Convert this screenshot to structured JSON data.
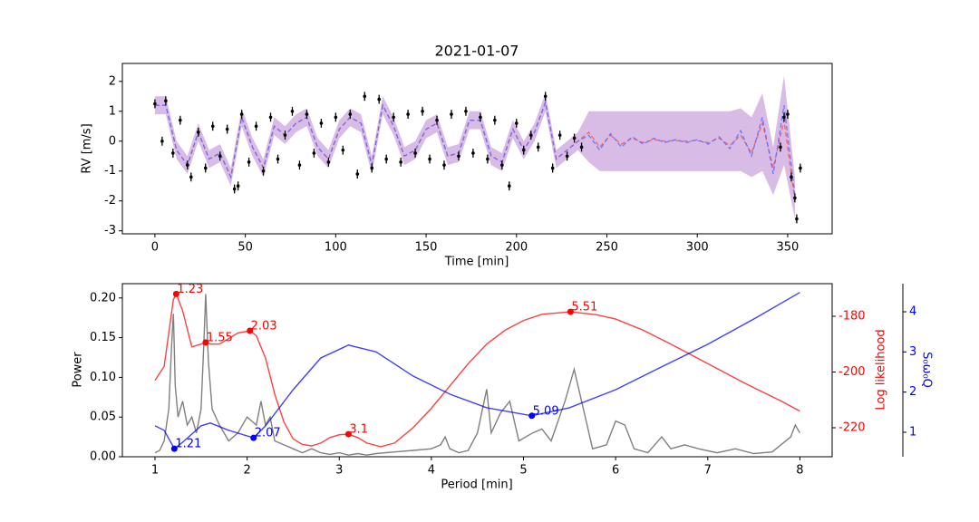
{
  "chart_data": [
    {
      "type": "scatter",
      "title": "2021-01-07",
      "x_label": "Time [min]",
      "y_label": "RV [m/s]",
      "xlim": [
        -18,
        374.6
      ],
      "ylim": [
        -3.1,
        2.6
      ],
      "xticks": [
        0,
        50,
        100,
        150,
        200,
        250,
        300,
        350
      ],
      "yticks": [
        -3,
        -2,
        -1,
        0,
        1,
        2
      ],
      "series": [
        {
          "color": "#000000",
          "error": 0.15,
          "x": [
            0,
            4,
            6,
            10,
            14,
            18,
            20,
            24,
            28,
            32,
            36,
            40,
            44,
            46,
            48,
            52,
            56,
            60,
            64,
            68,
            72,
            76,
            80,
            84,
            88,
            92,
            96,
            100,
            104,
            108,
            112,
            116,
            120,
            124,
            128,
            132,
            136,
            140,
            144,
            148,
            152,
            156,
            160,
            164,
            168,
            172,
            176,
            180,
            184,
            188,
            192,
            196,
            200,
            204,
            208,
            212,
            216,
            220,
            224,
            228,
            232,
            236,
            346,
            348,
            350,
            352,
            354,
            355,
            357
          ],
          "values": [
            1.25,
            0.0,
            1.35,
            -0.4,
            0.7,
            -0.8,
            -1.2,
            0.3,
            -0.9,
            0.5,
            -0.5,
            0.4,
            -1.6,
            -1.5,
            0.9,
            -0.7,
            0.5,
            -1.0,
            0.8,
            -0.6,
            0.2,
            1.0,
            -0.8,
            0.9,
            -0.4,
            0.6,
            -0.7,
            0.8,
            -0.3,
            0.9,
            -1.1,
            1.5,
            -0.9,
            1.4,
            -0.6,
            0.8,
            -0.7,
            0.9,
            -0.4,
            1.0,
            -0.6,
            0.7,
            -0.8,
            0.9,
            -0.5,
            1.0,
            -0.4,
            0.8,
            -0.6,
            0.7,
            -0.8,
            -1.5,
            0.6,
            -0.3,
            0.2,
            -0.2,
            1.5,
            -0.9,
            0.2,
            -0.5,
            0.1,
            -0.2,
            -0.2,
            0.8,
            0.9,
            -1.2,
            -1.9,
            -2.6,
            -0.9
          ]
        }
      ],
      "model": {
        "band_color": "#c9a0dc",
        "x": [
          0,
          6,
          12,
          18,
          24,
          30,
          36,
          42,
          48,
          54,
          60,
          66,
          72,
          78,
          84,
          90,
          96,
          102,
          108,
          114,
          120,
          126,
          132,
          138,
          144,
          150,
          156,
          162,
          168,
          174,
          180,
          186,
          192,
          198,
          204,
          210,
          216,
          222,
          228,
          234,
          240,
          246,
          252,
          258,
          264,
          270,
          276,
          282,
          288,
          294,
          300,
          306,
          312,
          318,
          324,
          330,
          336,
          342,
          348,
          354
        ],
        "lower": [
          0.9,
          0.9,
          -0.6,
          -1.1,
          0,
          -0.9,
          -0.7,
          -1.5,
          0.5,
          -0.5,
          -1.2,
          0.2,
          -0.1,
          0.3,
          0.5,
          -0.5,
          -0.9,
          0.1,
          0.5,
          0.3,
          -1.1,
          0.9,
          0.2,
          -0.8,
          -0.6,
          0.1,
          0.3,
          -0.8,
          -0.7,
          0.4,
          0.4,
          -0.8,
          -1.0,
          0.1,
          -0.6,
          0,
          1.0,
          -0.9,
          -0.6,
          -0.3,
          -0.7,
          -1.0,
          -1.0,
          -1.0,
          -1.0,
          -1.0,
          -1.0,
          -1.0,
          -1.0,
          -1.0,
          -1.0,
          -1.0,
          -1.0,
          -1.0,
          -1.0,
          -1.2,
          -1.0,
          -1.8,
          -0.8,
          -2.6
        ],
        "upper": [
          1.5,
          1.5,
          0,
          -0.5,
          0.6,
          -0.3,
          -0.1,
          -0.9,
          1.1,
          0.1,
          -0.6,
          0.8,
          0.5,
          0.9,
          1.1,
          0.1,
          -0.3,
          0.7,
          1.1,
          0.9,
          -0.5,
          1.5,
          0.8,
          -0.2,
          0,
          0.7,
          0.9,
          -0.2,
          -0.1,
          1.0,
          1.0,
          -0.2,
          -0.4,
          0.7,
          0,
          0.6,
          1.6,
          -0.3,
          0,
          0.3,
          1.0,
          1.0,
          1.0,
          1.0,
          1.0,
          1.0,
          1.0,
          1.0,
          1.0,
          1.0,
          1.0,
          1.0,
          1.0,
          1.0,
          1.1,
          0.8,
          1.6,
          -0.2,
          2.2,
          -1.2
        ],
        "series": [
          {
            "color": "#ff5050",
            "values": [
              1.2,
              1.2,
              -0.3,
              -0.8,
              0.3,
              -0.6,
              -0.4,
              -1.2,
              0.8,
              -0.2,
              -0.9,
              0.5,
              0.2,
              0.6,
              0.8,
              -0.2,
              -0.6,
              0.4,
              0.8,
              0.6,
              -0.8,
              1.2,
              0.5,
              -0.5,
              -0.3,
              0.4,
              0.6,
              -0.5,
              -0.4,
              0.7,
              0.7,
              -0.5,
              -0.7,
              0.4,
              -0.3,
              0.3,
              1.3,
              -0.6,
              -0.3,
              0.0,
              0.3,
              -0.2,
              0.2,
              -0.1,
              0.1,
              -0.05,
              0.05,
              0.0,
              0.02,
              0.0,
              0.02,
              -0.05,
              0.1,
              -0.15,
              0.2,
              -0.4,
              0.6,
              -0.9,
              0.7,
              -2.0
            ]
          },
          {
            "color": "#5a6cff",
            "values": [
              1.2,
              1.2,
              -0.3,
              -0.8,
              0.3,
              -0.6,
              -0.4,
              -1.2,
              0.8,
              -0.2,
              -0.9,
              0.5,
              0.2,
              0.6,
              0.8,
              -0.2,
              -0.6,
              0.4,
              0.8,
              0.6,
              -0.8,
              1.2,
              0.5,
              -0.5,
              -0.3,
              0.4,
              0.6,
              -0.5,
              -0.4,
              0.7,
              0.7,
              -0.5,
              -0.7,
              0.4,
              -0.3,
              0.3,
              1.3,
              -0.6,
              -0.3,
              0.0,
              0.2,
              -0.3,
              0.25,
              -0.2,
              0.15,
              -0.1,
              0.1,
              -0.05,
              0.05,
              -0.05,
              0.05,
              -0.1,
              0.15,
              -0.25,
              0.35,
              -0.5,
              0.8,
              -1.1,
              1.2,
              -1.8
            ]
          }
        ]
      }
    },
    {
      "type": "line",
      "x_label": "Period [min]",
      "y_label": "Power",
      "y2_label": "Log likelihood",
      "y3_label": "S₀ω₀Q",
      "xlim": [
        0.646,
        8.35
      ],
      "ylim": [
        0,
        0.218
      ],
      "y2lim": [
        -230.4,
        -168.3
      ],
      "y3lim": [
        0.39,
        4.7
      ],
      "xticks": [
        1,
        2,
        3,
        4,
        5,
        6,
        7,
        8
      ],
      "yticks": [
        {
          "value": 0,
          "label": "0.00"
        },
        {
          "value": 0.05,
          "label": "0.05"
        },
        {
          "value": 0.1,
          "label": "0.10"
        },
        {
          "value": 0.15,
          "label": "0.15"
        },
        {
          "value": 0.2,
          "label": "0.20"
        }
      ],
      "y2ticks": [
        -220,
        -200,
        -180
      ],
      "y3ticks": [
        1,
        2,
        3,
        4
      ],
      "series": [
        {
          "color": "gray",
          "axis": "y",
          "x": [
            1.0,
            1.05,
            1.1,
            1.15,
            1.18,
            1.2,
            1.22,
            1.25,
            1.3,
            1.35,
            1.4,
            1.45,
            1.5,
            1.53,
            1.55,
            1.58,
            1.62,
            1.7,
            1.8,
            1.9,
            2.0,
            2.1,
            2.15,
            2.2,
            2.25,
            2.3,
            2.4,
            2.5,
            2.6,
            2.7,
            2.8,
            2.9,
            3.0,
            3.1,
            3.2,
            3.3,
            3.4,
            3.6,
            3.8,
            4.0,
            4.1,
            4.15,
            4.2,
            4.3,
            4.4,
            4.5,
            4.6,
            4.65,
            4.75,
            4.85,
            4.95,
            5.1,
            5.2,
            5.3,
            5.45,
            5.55,
            5.65,
            5.75,
            5.9,
            6.0,
            6.1,
            6.2,
            6.35,
            6.5,
            6.6,
            6.75,
            6.9,
            7.1,
            7.3,
            7.5,
            7.7,
            7.9,
            7.95,
            8.0
          ],
          "values": [
            0.005,
            0.008,
            0.02,
            0.06,
            0.14,
            0.18,
            0.09,
            0.05,
            0.07,
            0.04,
            0.05,
            0.03,
            0.06,
            0.14,
            0.205,
            0.12,
            0.06,
            0.04,
            0.02,
            0.03,
            0.05,
            0.04,
            0.07,
            0.04,
            0.05,
            0.02,
            0.015,
            0.01,
            0.005,
            0.01,
            0.005,
            0.003,
            0.005,
            0.002,
            0.004,
            0.002,
            0.004,
            0.006,
            0.008,
            0.01,
            0.015,
            0.025,
            0.01,
            0.005,
            0.008,
            0.03,
            0.085,
            0.03,
            0.055,
            0.07,
            0.02,
            0.03,
            0.035,
            0.02,
            0.07,
            0.11,
            0.06,
            0.01,
            0.015,
            0.045,
            0.04,
            0.01,
            0.005,
            0.025,
            0.01,
            0.015,
            0.01,
            0.005,
            0.01,
            0.004,
            0.006,
            0.025,
            0.04,
            0.03
          ]
        },
        {
          "color": "red",
          "axis": "y2",
          "x": [
            1.0,
            1.1,
            1.2,
            1.23,
            1.3,
            1.4,
            1.5,
            1.55,
            1.6,
            1.7,
            1.8,
            1.9,
            2.03,
            2.1,
            2.2,
            2.3,
            2.4,
            2.5,
            2.6,
            2.7,
            2.8,
            2.9,
            3.0,
            3.1,
            3.2,
            3.3,
            3.45,
            3.6,
            3.8,
            4.0,
            4.2,
            4.4,
            4.6,
            4.8,
            5.0,
            5.2,
            5.51,
            5.8,
            6.0,
            6.3,
            6.6,
            7.0,
            7.4,
            7.8,
            8.0
          ],
          "values": [
            -203,
            -198,
            -174,
            -172,
            -178,
            -191,
            -190,
            -189.4,
            -190,
            -190,
            -188,
            -186,
            -185.2,
            -187,
            -195,
            -208,
            -218,
            -224,
            -226,
            -226.5,
            -225.5,
            -223.5,
            -222.5,
            -222.3,
            -223.5,
            -225.5,
            -226.8,
            -225.5,
            -220,
            -213,
            -205,
            -197,
            -190,
            -185,
            -181.5,
            -179.3,
            -178.4,
            -179.5,
            -181,
            -185,
            -190,
            -197,
            -204,
            -210.5,
            -214
          ],
          "peaks": {
            "x": [
              1.23,
              1.55,
              2.03,
              3.1,
              5.51
            ],
            "values": [
              -172,
              -189.4,
              -185.2,
              -222.3,
              -178.4
            ]
          }
        },
        {
          "color": "blue",
          "axis": "y3",
          "x": [
            1.0,
            1.1,
            1.21,
            1.3,
            1.5,
            1.6,
            1.8,
            2.07,
            2.2,
            2.5,
            2.8,
            3.1,
            3.4,
            3.8,
            4.2,
            4.6,
            5.09,
            5.5,
            6.0,
            6.5,
            7.0,
            7.5,
            8.0
          ],
          "values": [
            1.16,
            1.05,
            0.59,
            0.75,
            1.16,
            1.23,
            1.05,
            0.86,
            1.16,
            2.06,
            2.85,
            3.17,
            3.0,
            2.4,
            1.95,
            1.61,
            1.41,
            1.61,
            2.06,
            2.63,
            3.19,
            3.82,
            4.48
          ],
          "peaks": {
            "x": [
              1.21,
              2.07,
              5.09
            ],
            "values": [
              0.59,
              0.86,
              1.41
            ]
          }
        }
      ]
    }
  ]
}
